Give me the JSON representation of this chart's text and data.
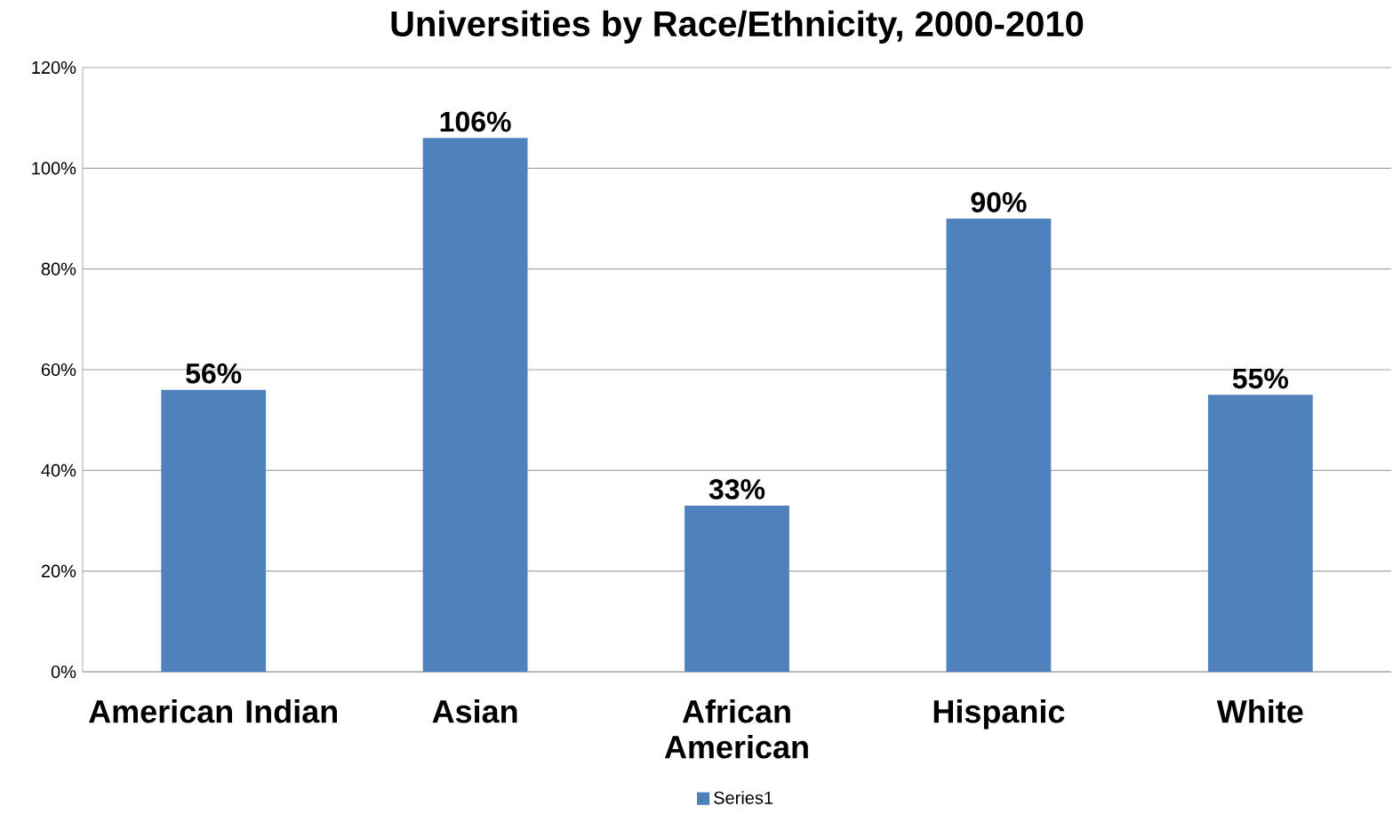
{
  "chart_data": {
    "type": "bar",
    "title": "Universities by Race/Ethnicity, 2000-2010",
    "categories": [
      "American Indian",
      "Asian",
      "African American",
      "Hispanic",
      "White"
    ],
    "series": [
      {
        "name": "Series1",
        "color": "#4f81bd",
        "values": [
          56,
          106,
          33,
          90,
          55
        ],
        "value_labels": [
          "56%",
          "106%",
          "33%",
          "90%",
          "55%"
        ]
      }
    ],
    "ylim": [
      0,
      120
    ],
    "yticks": [
      {
        "value": 0,
        "label": "0%"
      },
      {
        "value": 20,
        "label": "20%"
      },
      {
        "value": 40,
        "label": "40%"
      },
      {
        "value": 60,
        "label": "60%"
      },
      {
        "value": 80,
        "label": "80%"
      },
      {
        "value": 100,
        "label": "100%"
      },
      {
        "value": 120,
        "label": "120%"
      }
    ],
    "grid": "y",
    "legend": "bottom"
  }
}
